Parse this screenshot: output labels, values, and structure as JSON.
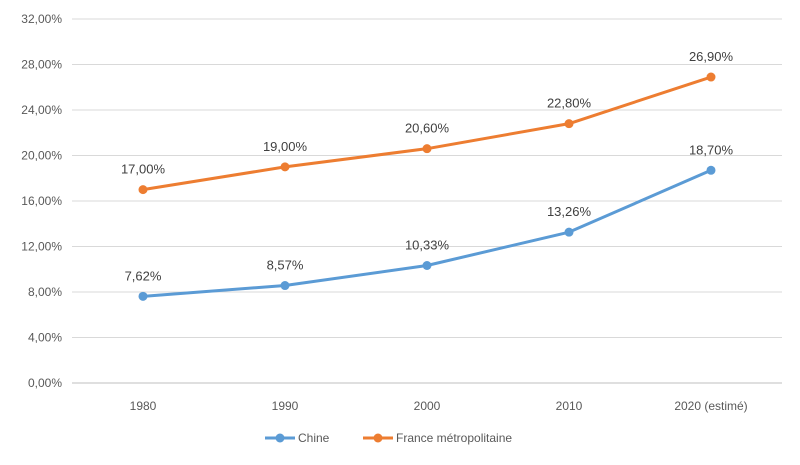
{
  "chart_data": {
    "type": "line",
    "categories": [
      "1980",
      "1990",
      "2000",
      "2010",
      "2020 (estimé)"
    ],
    "series": [
      {
        "name": "Chine",
        "color": "#5B9BD5",
        "values": [
          7.62,
          8.57,
          10.33,
          13.26,
          18.7
        ],
        "labels": [
          "7,62%",
          "8,57%",
          "10,33%",
          "13,26%",
          "18,70%"
        ]
      },
      {
        "name": "France métropolitaine",
        "color": "#ED7D31",
        "values": [
          17.0,
          19.0,
          20.6,
          22.8,
          26.9
        ],
        "labels": [
          "17,00%",
          "19,00%",
          "20,60%",
          "22,80%",
          "26,90%"
        ]
      }
    ],
    "ylim": [
      0,
      32
    ],
    "yticks": [
      0,
      4,
      8,
      12,
      16,
      20,
      24,
      28,
      32
    ],
    "ytick_labels": [
      "0,00%",
      "4,00%",
      "8,00%",
      "12,00%",
      "16,00%",
      "20,00%",
      "24,00%",
      "28,00%",
      "32,00%"
    ],
    "grid": true,
    "legend_position": "bottom"
  }
}
